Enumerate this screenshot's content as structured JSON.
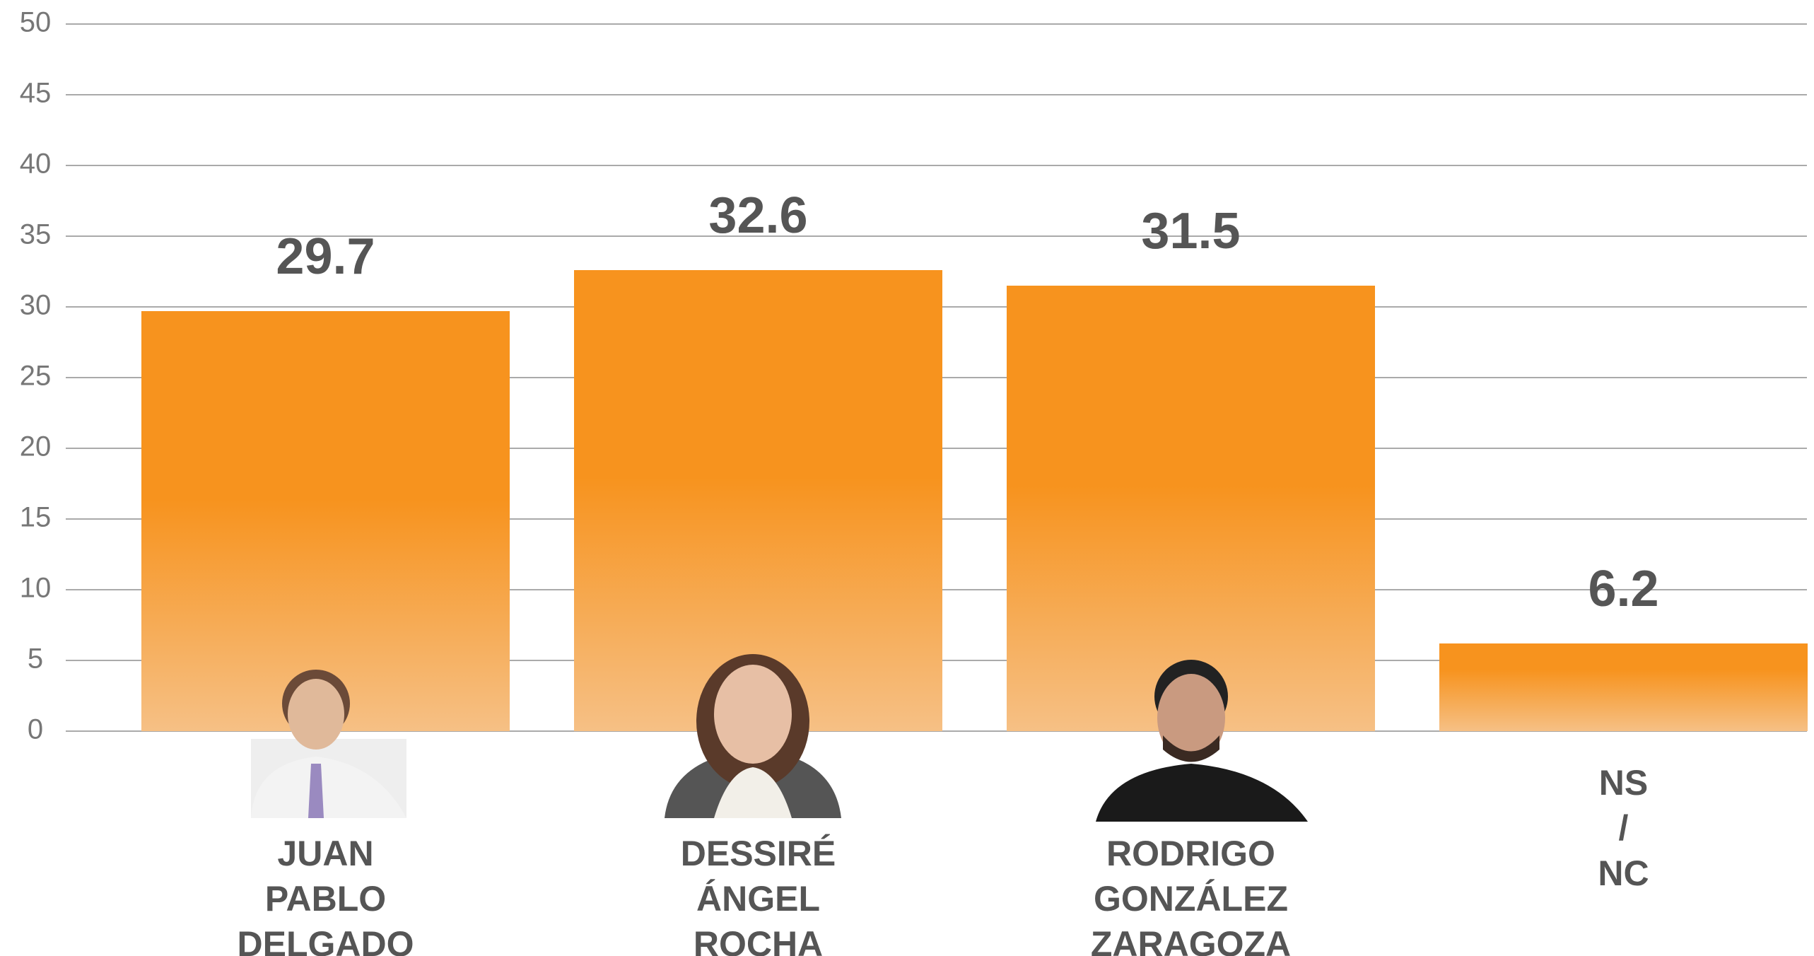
{
  "chart_data": {
    "type": "bar",
    "categories": [
      "JUAN PABLO DELGADO",
      "DESSIRÉ ÁNGEL ROCHA",
      "RODRIGO GONZÁLEZ ZARAGOZA",
      "NS / NC"
    ],
    "values": [
      29.7,
      32.6,
      31.5,
      6.2
    ],
    "color": "#f7931e",
    "ylim": [
      0,
      50
    ],
    "yticks": [
      0,
      5,
      10,
      15,
      20,
      25,
      30,
      35,
      40,
      45,
      50
    ],
    "grid": true
  }
}
